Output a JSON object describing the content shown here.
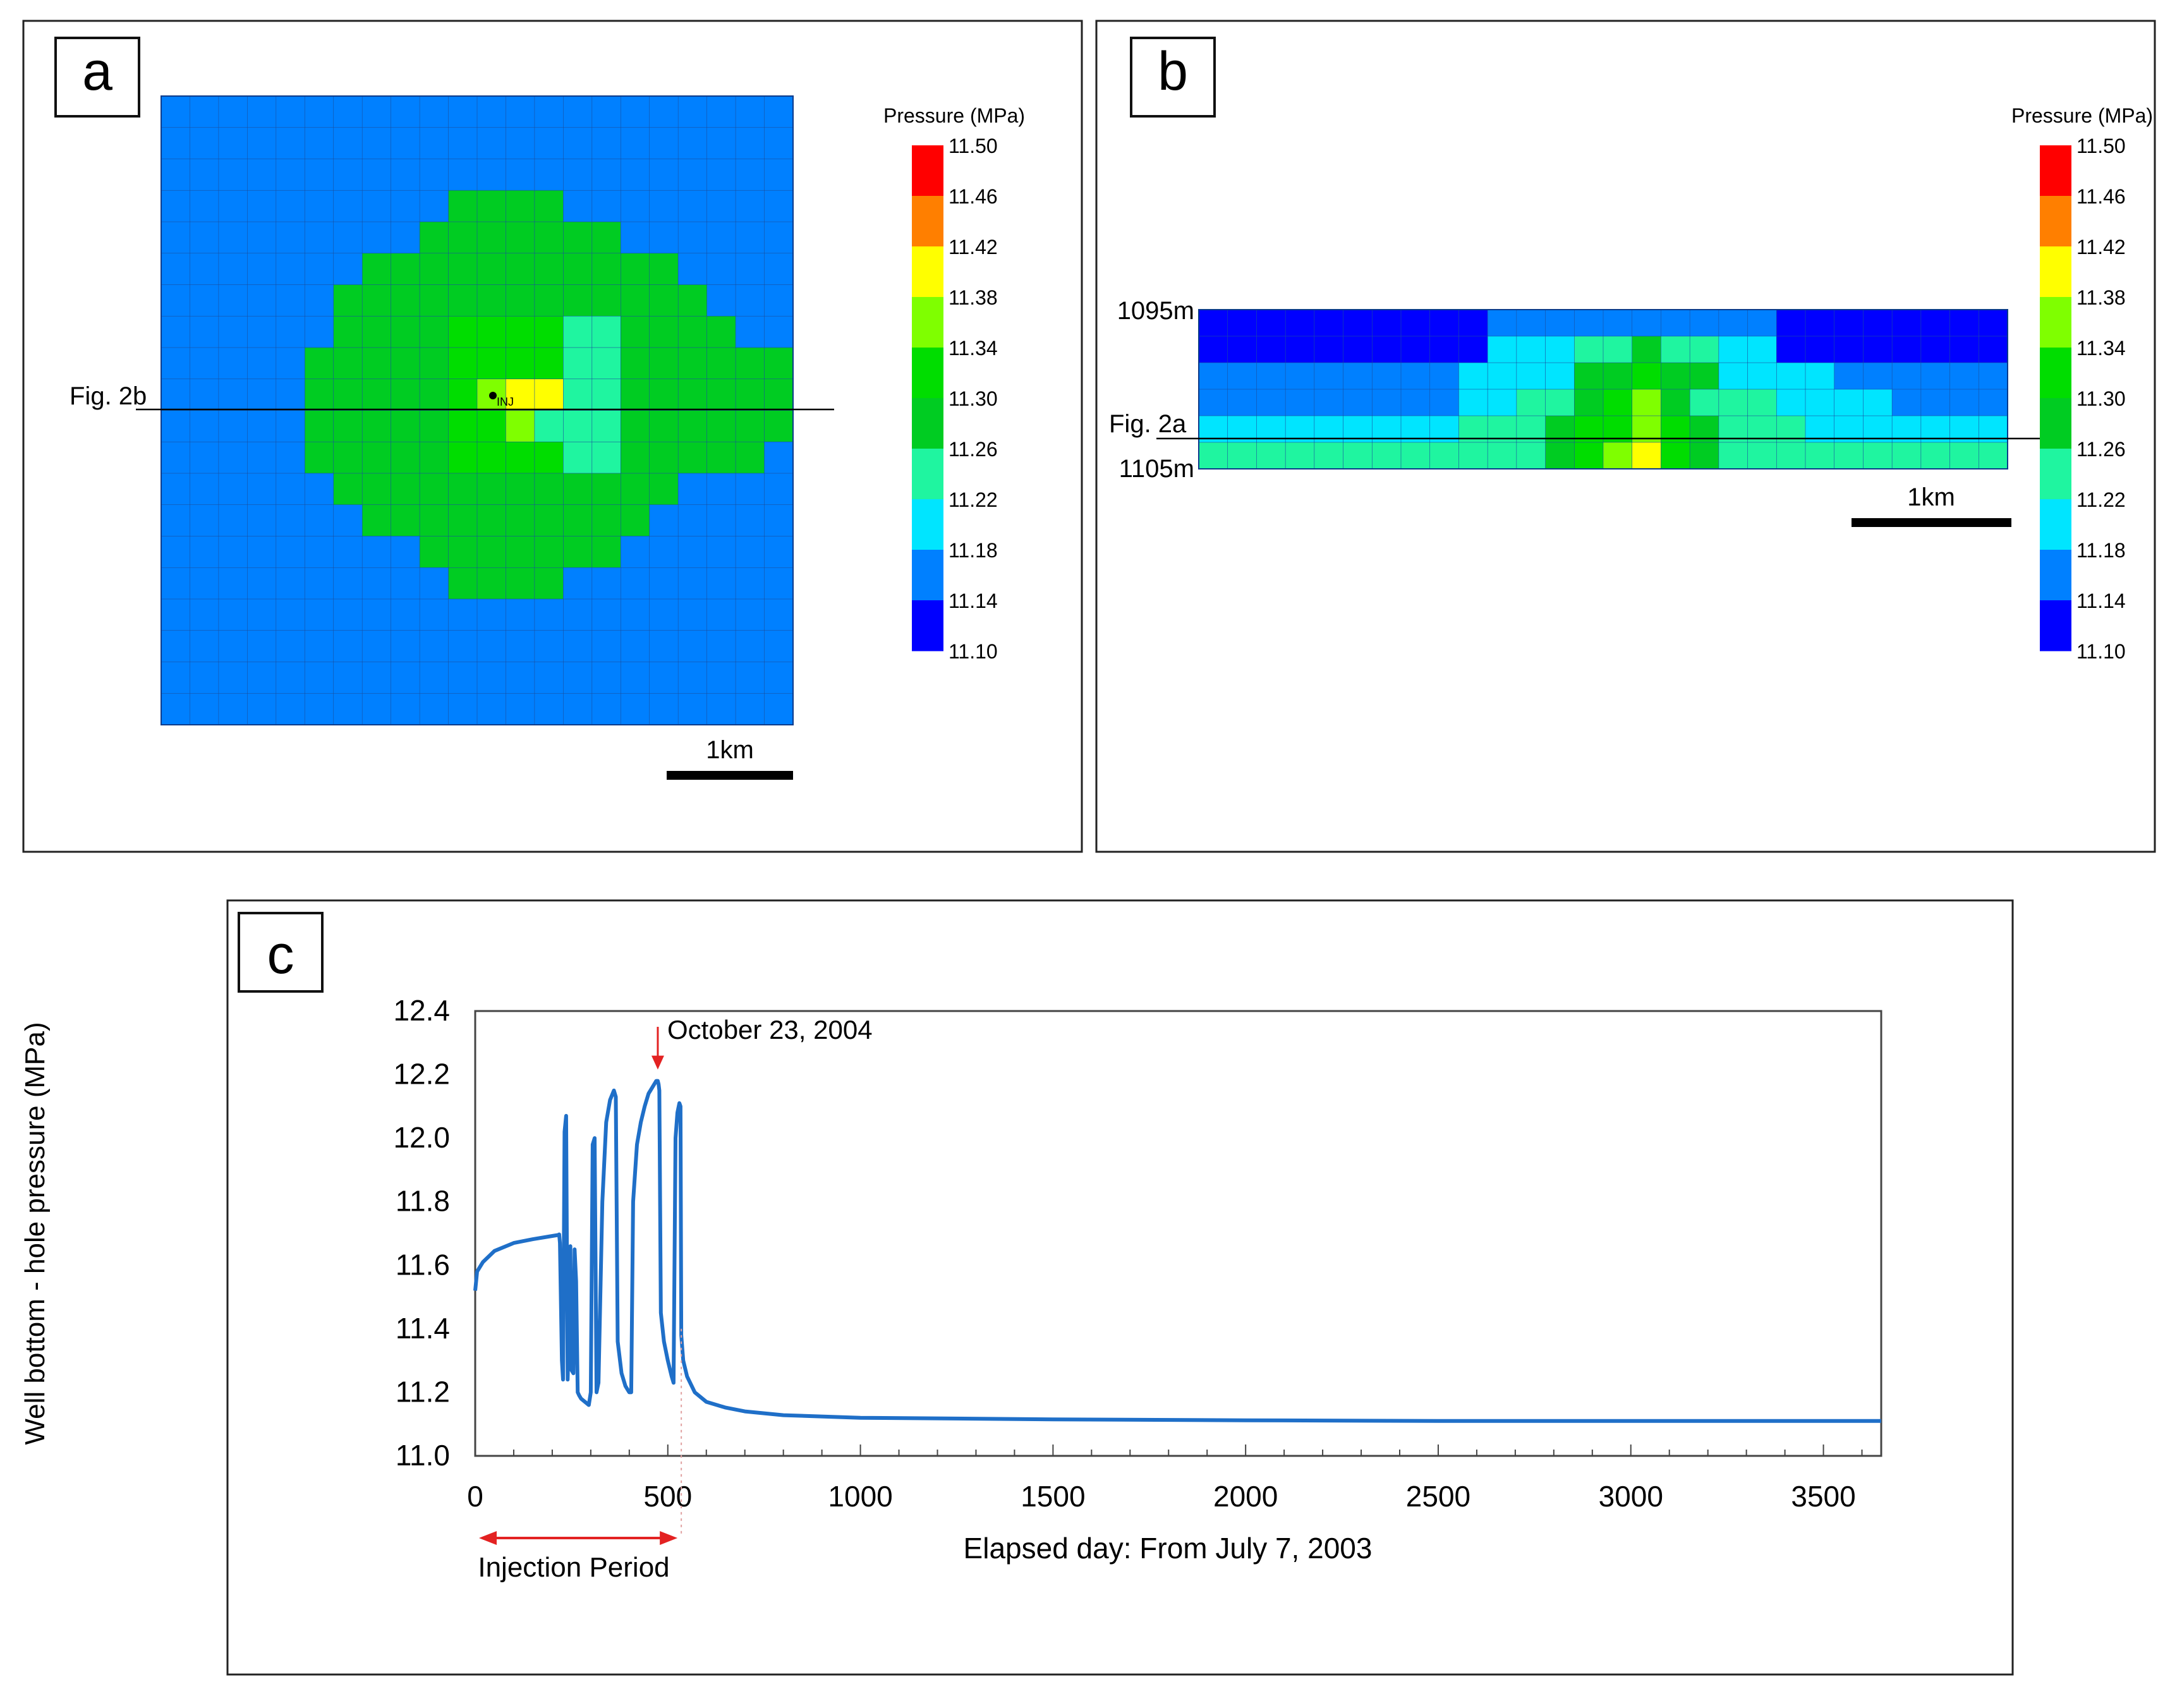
{
  "colorbar": {
    "title": "Pressure (MPa)",
    "levels": [
      "11.50",
      "11.46",
      "11.42",
      "11.38",
      "11.34",
      "11.30",
      "11.26",
      "11.22",
      "11.18",
      "11.14",
      "11.10"
    ],
    "colors": [
      "#ff0000",
      "#ff7f00",
      "#ffff00",
      "#7fff00",
      "#00dd00",
      "#00cc22",
      "#1ff5a0",
      "#00e5ff",
      "#0080ff",
      "#0000ff"
    ]
  },
  "panel_a": {
    "label": "a",
    "section_line_label": "Fig. 2b",
    "well_label": "INJ",
    "scale_label": "1km",
    "grid_rows": [
      "0000000000000000000000",
      "0000000000000000000000",
      "0000000000000000000000",
      "0000000000333300000000",
      "0000000003333333000000",
      "0000000333333333330000",
      "0000003333333333333000",
      "0000003333444422333300",
      "0000033333444422333333",
      "0000033333456622333333",
      "0000033333445222333333",
      "0000033333444422333330",
      "0000003333333333330000",
      "0000000333333333300000",
      "0000000003333333000000",
      "0000000000333300000000",
      "0000000000000000000000",
      "0000000000000000000000",
      "0000000000000000000000",
      "0000000000000000000000"
    ]
  },
  "panel_b": {
    "label": "b",
    "top_depth": "1095m",
    "bottom_depth": "1105m",
    "section_line_label": "Fig. 2a",
    "scale_label": "1km",
    "grid_rows": [
      "0000000000111111111100000000",
      "0000000000222334332200000000",
      "1111111112222445442222111111",
      "1111111112233456433322221111",
      "2222222223334556543332222222",
      "3333333333334567543333333333"
    ]
  },
  "panel_c": {
    "label": "c",
    "annotation": "October 23, 2004",
    "injection_label": "Injection Period"
  },
  "chart_data": {
    "type": "line",
    "title": "",
    "xlabel": "Elapsed day: From July 7, 2003",
    "ylabel": "Well bottom - hole pressure (MPa)",
    "xlim": [
      0,
      3650
    ],
    "ylim": [
      11.0,
      12.4
    ],
    "xticks": [
      0,
      500,
      1000,
      1500,
      2000,
      2500,
      3000,
      3500
    ],
    "xtick_labels": [
      "0",
      "500",
      "1000",
      "1500",
      "2000",
      "2500",
      "3000",
      "3500"
    ],
    "yticks": [
      11.0,
      11.2,
      11.4,
      11.6,
      11.8,
      12.0,
      12.2,
      12.4
    ],
    "ytick_labels": [
      "11.0",
      "11.2",
      "11.4",
      "11.6",
      "11.8",
      "12.0",
      "12.2",
      "12.4"
    ],
    "injection_period": [
      0,
      535
    ],
    "annotation_point": {
      "x": 474,
      "y": 12.18,
      "label": "October 23, 2004"
    },
    "series": [
      {
        "name": "Well bottom-hole pressure",
        "color": "#1f6fc8",
        "x": [
          0,
          5,
          20,
          50,
          100,
          150,
          200,
          215,
          218,
          220,
          225,
          228,
          232,
          236,
          240,
          244,
          247,
          250,
          255,
          258,
          262,
          266,
          270,
          275,
          285,
          295,
          300,
          305,
          310,
          315,
          320,
          330,
          340,
          350,
          360,
          365,
          370,
          380,
          390,
          400,
          405,
          410,
          420,
          430,
          440,
          450,
          460,
          470,
          474,
          476,
          478,
          482,
          490,
          500,
          510,
          515,
          520,
          525,
          530,
          533,
          535,
          540,
          550,
          570,
          600,
          650,
          700,
          800,
          1000,
          1500,
          2000,
          2500,
          3000,
          3650
        ],
        "y": [
          11.52,
          11.58,
          11.61,
          11.645,
          11.67,
          11.682,
          11.692,
          11.695,
          11.697,
          11.67,
          11.3,
          11.24,
          12.02,
          12.07,
          11.24,
          11.42,
          11.66,
          11.27,
          11.26,
          11.65,
          11.55,
          11.2,
          11.19,
          11.18,
          11.17,
          11.16,
          11.2,
          11.98,
          12.0,
          11.2,
          11.23,
          11.8,
          12.05,
          12.12,
          12.15,
          12.13,
          11.36,
          11.26,
          11.22,
          11.2,
          11.2,
          11.8,
          11.98,
          12.05,
          12.1,
          12.14,
          12.16,
          12.18,
          12.18,
          12.17,
          12.15,
          11.45,
          11.36,
          11.3,
          11.25,
          11.23,
          12.0,
          12.08,
          12.11,
          12.1,
          11.38,
          11.3,
          11.25,
          11.2,
          11.17,
          11.152,
          11.14,
          11.128,
          11.12,
          11.115,
          11.112,
          11.11,
          11.11,
          11.11
        ]
      }
    ]
  }
}
